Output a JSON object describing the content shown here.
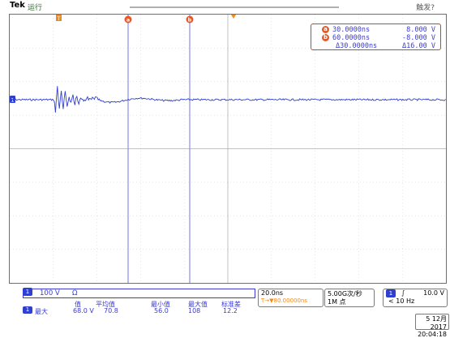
{
  "topbar": {
    "brand": "Tek",
    "run_state": "运行",
    "trigger_state": "触发?"
  },
  "channel": {
    "number": "1",
    "scale": "100 V",
    "coupling_symbol": "Ω",
    "color": "#2f3fd0"
  },
  "cursor_readout": {
    "a": {
      "label": "a",
      "time": "30.0000ns",
      "volt": "8.000 V"
    },
    "b": {
      "label": "b",
      "time": "60.0000ns",
      "volt": "-8.000 V"
    },
    "delta": {
      "time": "Δ30.0000ns",
      "volt": "Δ16.00 V"
    }
  },
  "markers": {
    "trigger_pos": "T",
    "cursor_a": "a",
    "cursor_b": "b",
    "ch1_ground": "1"
  },
  "measurement": {
    "headers": [
      "值",
      "平均值",
      "最小值",
      "最大值",
      "标准差"
    ],
    "row_label": "最大",
    "values": [
      "68.0 V",
      "70.8",
      "56.0",
      "108",
      "12.2"
    ]
  },
  "horizontal": {
    "scale": "20.0ns",
    "position": "T→▼80.00000ns"
  },
  "acquisition": {
    "sample_rate": "5.00G次/秒",
    "record_length": "1M 点"
  },
  "trigger": {
    "source": "1",
    "slope": "∫",
    "level": "10.0 V",
    "frequency": "< 10 Hz"
  },
  "datetime": {
    "date": "5 12月 2017",
    "time": "20:04:18"
  }
}
